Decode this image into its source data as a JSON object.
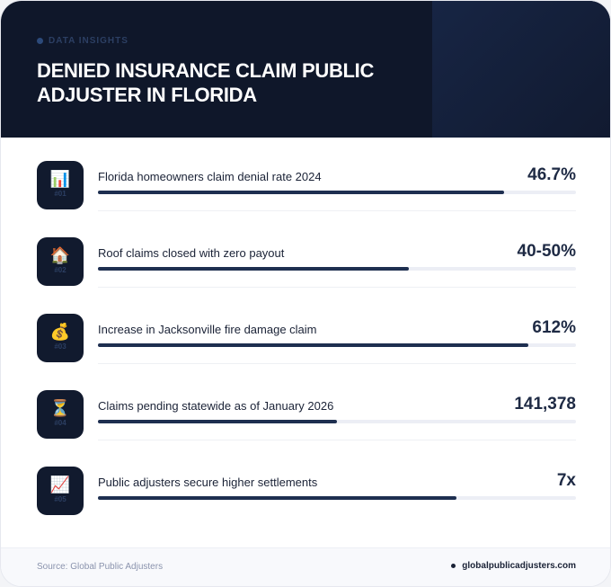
{
  "header": {
    "kicker": "DATA INSIGHTS",
    "title": "DENIED INSURANCE CLAIM PUBLIC ADJUSTER IN FLORIDA"
  },
  "stats": [
    {
      "icon": "📊",
      "icon_name": "bar-chart-icon",
      "num": "#01",
      "label": "Florida homeowners claim denial rate 2024",
      "value": "46.7%",
      "fill_percent": 85
    },
    {
      "icon": "🏠",
      "icon_name": "house-icon",
      "num": "#02",
      "label": "Roof claims closed with zero payout",
      "value": "40-50%",
      "fill_percent": 65
    },
    {
      "icon": "💰",
      "icon_name": "money-bag-icon",
      "num": "#03",
      "label": "Increase in Jacksonville fire damage claim",
      "value": "612%",
      "fill_percent": 90
    },
    {
      "icon": "⏳",
      "icon_name": "hourglass-icon",
      "num": "#04",
      "label": "Claims pending statewide as of January 2026",
      "value": "141,378",
      "fill_percent": 50
    },
    {
      "icon": "📈",
      "icon_name": "trend-up-icon",
      "num": "#05",
      "label": "Public adjusters secure higher settlements",
      "value": "7x",
      "fill_percent": 75
    }
  ],
  "footer": {
    "source": "Source: Global Public Adjusters",
    "site": "globalpublicadjusters.com"
  },
  "colors": {
    "header_bg": "#0f172a",
    "bar_fill": "#1e2f50",
    "bar_track": "#eceef5"
  }
}
